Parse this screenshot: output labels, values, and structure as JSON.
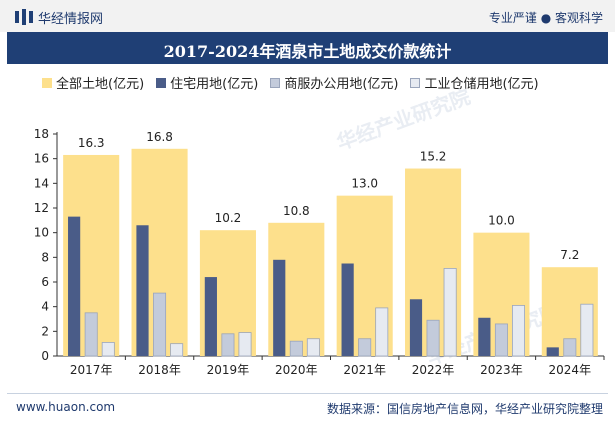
{
  "header": {
    "brand": "华经情报网",
    "tagline": "专业严谨 ● 客观科学",
    "title": "2017-2024年酒泉市土地成交价款统计"
  },
  "footer": {
    "website": "www.huaon.com",
    "source": "数据来源：国信房地产信息网，华经产业研究院整理"
  },
  "watermark": "华经产业研究院",
  "colors": {
    "title_bg": "#1f3f75",
    "series": [
      "#fde08c",
      "#4a5c88",
      "#c3cbdb",
      "#e6eaf1"
    ]
  },
  "chart_data": {
    "type": "bar",
    "categories": [
      "2017年",
      "2018年",
      "2019年",
      "2020年",
      "2021年",
      "2022年",
      "2023年",
      "2024年"
    ],
    "series": [
      {
        "name": "全部土地(亿元)",
        "values": [
          16.3,
          16.8,
          10.2,
          10.8,
          13.0,
          15.2,
          10.0,
          7.2
        ],
        "labels": [
          "16.3",
          "16.8",
          "10.2",
          "10.8",
          "13.0",
          "15.2",
          "10.0",
          "7.2"
        ]
      },
      {
        "name": "住宅用地(亿元)",
        "values": [
          11.3,
          10.6,
          6.4,
          7.8,
          7.5,
          4.6,
          3.1,
          0.7
        ]
      },
      {
        "name": "商服办公用地(亿元)",
        "values": [
          3.5,
          5.1,
          1.8,
          1.2,
          1.4,
          2.9,
          2.6,
          1.4
        ]
      },
      {
        "name": "工业仓储用地(亿元)",
        "values": [
          1.1,
          1.0,
          1.9,
          1.4,
          3.9,
          7.1,
          4.1,
          4.2
        ]
      }
    ],
    "ylim": [
      0,
      18
    ],
    "yticks": [
      "0",
      "2",
      "4",
      "6",
      "8",
      "10",
      "12",
      "14",
      "16",
      "18"
    ],
    "legend_position": "top",
    "grid": false
  }
}
